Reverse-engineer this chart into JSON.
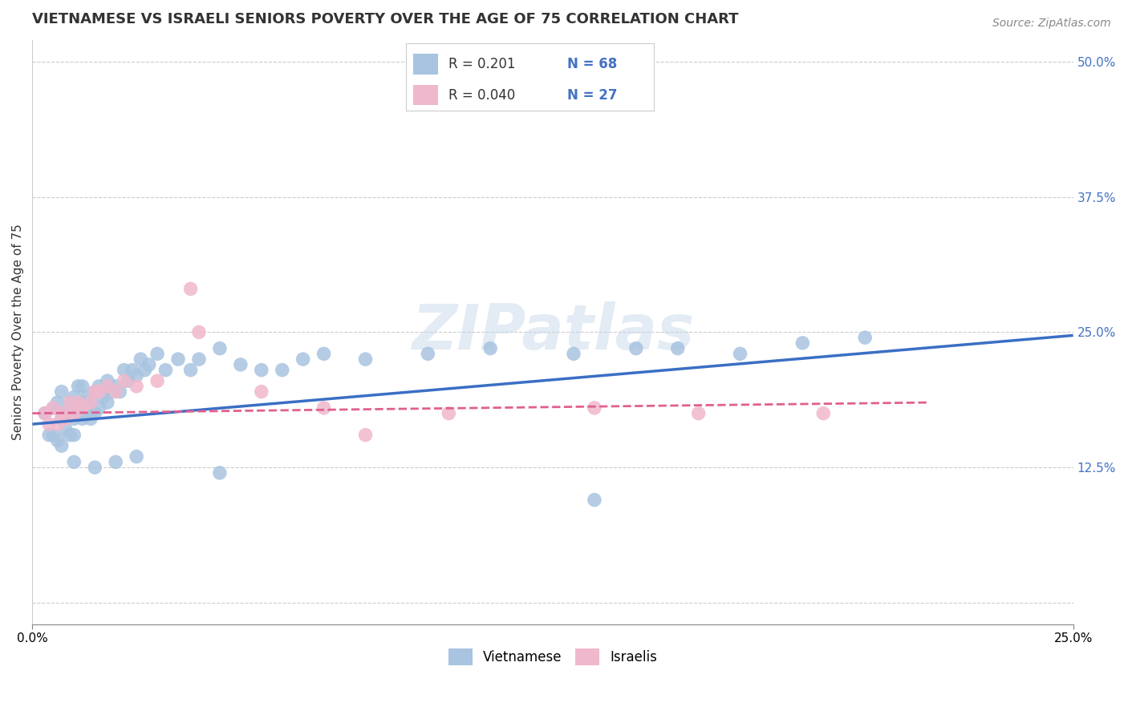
{
  "title": "VIETNAMESE VS ISRAELI SENIORS POVERTY OVER THE AGE OF 75 CORRELATION CHART",
  "source": "Source: ZipAtlas.com",
  "ylabel": "Seniors Poverty Over the Age of 75",
  "xlim": [
    0.0,
    0.25
  ],
  "ylim": [
    -0.02,
    0.52
  ],
  "yticks": [
    0.0,
    0.125,
    0.25,
    0.375,
    0.5
  ],
  "ytick_labels": [
    "",
    "12.5%",
    "25.0%",
    "37.5%",
    "50.0%"
  ],
  "viet_color": "#a8c4e0",
  "isr_color": "#f0b8cc",
  "viet_line_color": "#3a6fc4",
  "isr_line_color": "#e06090",
  "background_color": "#ffffff",
  "grid_color": "#cccccc",
  "title_fontsize": 13,
  "label_fontsize": 11,
  "tick_fontsize": 11,
  "viet_x": [
    0.003,
    0.004,
    0.005,
    0.005,
    0.006,
    0.006,
    0.007,
    0.007,
    0.007,
    0.008,
    0.008,
    0.009,
    0.009,
    0.01,
    0.01,
    0.01,
    0.011,
    0.011,
    0.012,
    0.012,
    0.012,
    0.013,
    0.013,
    0.014,
    0.014,
    0.015,
    0.015,
    0.016,
    0.016,
    0.017,
    0.018,
    0.018,
    0.019,
    0.02,
    0.021,
    0.022,
    0.023,
    0.024,
    0.025,
    0.026,
    0.027,
    0.028,
    0.03,
    0.032,
    0.035,
    0.038,
    0.04,
    0.045,
    0.05,
    0.055,
    0.06,
    0.065,
    0.07,
    0.08,
    0.095,
    0.11,
    0.13,
    0.145,
    0.155,
    0.17,
    0.185,
    0.2,
    0.01,
    0.015,
    0.02,
    0.025,
    0.045,
    0.135
  ],
  "viet_y": [
    0.175,
    0.155,
    0.155,
    0.18,
    0.15,
    0.185,
    0.145,
    0.17,
    0.195,
    0.16,
    0.175,
    0.155,
    0.185,
    0.155,
    0.17,
    0.19,
    0.175,
    0.2,
    0.17,
    0.185,
    0.2,
    0.175,
    0.19,
    0.17,
    0.185,
    0.175,
    0.195,
    0.18,
    0.2,
    0.19,
    0.185,
    0.205,
    0.195,
    0.2,
    0.195,
    0.215,
    0.205,
    0.215,
    0.21,
    0.225,
    0.215,
    0.22,
    0.23,
    0.215,
    0.225,
    0.215,
    0.225,
    0.235,
    0.22,
    0.215,
    0.215,
    0.225,
    0.23,
    0.225,
    0.23,
    0.235,
    0.23,
    0.235,
    0.235,
    0.23,
    0.24,
    0.245,
    0.13,
    0.125,
    0.13,
    0.135,
    0.12,
    0.095
  ],
  "isr_x": [
    0.003,
    0.004,
    0.005,
    0.006,
    0.007,
    0.008,
    0.009,
    0.01,
    0.011,
    0.012,
    0.014,
    0.015,
    0.016,
    0.018,
    0.02,
    0.022,
    0.025,
    0.03,
    0.04,
    0.055,
    0.07,
    0.1,
    0.135,
    0.16,
    0.19,
    0.038,
    0.08
  ],
  "isr_y": [
    0.175,
    0.165,
    0.18,
    0.165,
    0.175,
    0.17,
    0.185,
    0.175,
    0.185,
    0.18,
    0.185,
    0.195,
    0.195,
    0.2,
    0.195,
    0.205,
    0.2,
    0.205,
    0.25,
    0.195,
    0.18,
    0.175,
    0.18,
    0.175,
    0.175,
    0.29,
    0.155
  ],
  "viet_line_x": [
    0.0,
    0.25
  ],
  "viet_line_y_start": 0.165,
  "viet_line_y_end": 0.247,
  "isr_line_x": [
    0.0,
    0.215
  ],
  "isr_line_y_start": 0.175,
  "isr_line_y_end": 0.185
}
